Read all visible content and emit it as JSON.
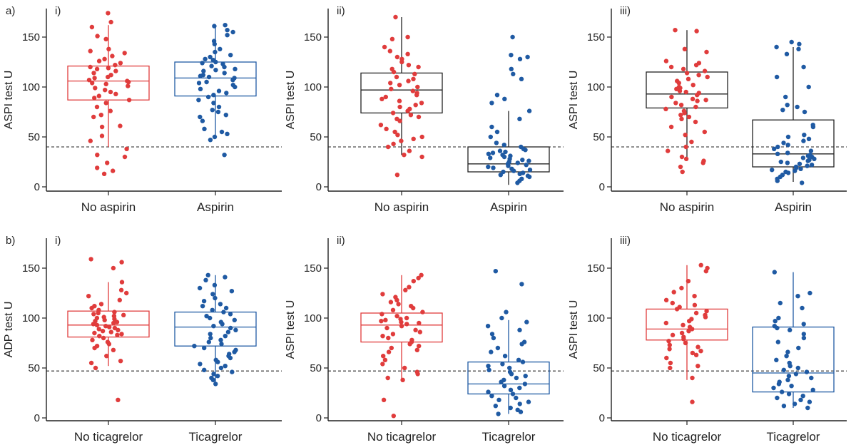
{
  "figure": {
    "row_labels": [
      "a)",
      "b)"
    ],
    "colors": {
      "red": "#e03c3c",
      "blue": "#1f5aa3",
      "black": "#222222"
    }
  },
  "chart_data": [
    {
      "type": "box-strip",
      "row": "a",
      "panel_label": "i)",
      "ylabel": "ASPI test U",
      "ylim": [
        0,
        175
      ],
      "yticks": [
        0,
        50,
        100,
        150
      ],
      "threshold": 40,
      "box_color": "red-blue",
      "groups": [
        {
          "name": "No aspirin",
          "color": "red",
          "box": {
            "whisker_low": 40,
            "q1": 87,
            "median": 106,
            "q3": 121,
            "whisker_high": 162
          },
          "points": [
            174,
            165,
            160,
            151,
            148,
            138,
            136,
            134,
            131,
            128,
            126,
            124,
            122,
            120,
            119,
            118,
            116,
            114,
            112,
            110,
            109,
            107,
            106,
            105,
            104,
            103,
            101,
            99,
            97,
            95,
            93,
            91,
            89,
            87,
            84,
            80,
            76,
            72,
            70,
            61,
            60,
            51,
            46,
            38,
            32,
            30,
            24,
            19,
            16,
            13
          ]
        },
        {
          "name": "Aspirin",
          "color": "blue",
          "box": {
            "whisker_low": 50,
            "q1": 91,
            "median": 109,
            "q3": 125,
            "whisker_high": 162
          },
          "points": [
            162,
            161,
            157,
            155,
            152,
            146,
            143,
            138,
            135,
            132,
            130,
            128,
            127,
            125,
            124,
            123,
            121,
            120,
            118,
            117,
            116,
            114,
            112,
            111,
            110,
            109,
            107,
            105,
            104,
            102,
            100,
            98,
            96,
            94,
            92,
            90,
            87,
            84,
            80,
            77,
            75,
            72,
            70,
            66,
            58,
            55,
            53,
            50,
            47,
            32
          ]
        }
      ]
    },
    {
      "type": "box-strip",
      "row": "a",
      "panel_label": "ii)",
      "ylabel": "ASPI test U",
      "ylim": [
        0,
        175
      ],
      "yticks": [
        0,
        50,
        100,
        150
      ],
      "threshold": 40,
      "box_color": "black",
      "groups": [
        {
          "name": "No aspirin",
          "color": "red",
          "box": {
            "whisker_low": 32,
            "q1": 74,
            "median": 97,
            "q3": 114,
            "whisker_high": 170
          },
          "points": [
            170,
            150,
            148,
            140,
            136,
            133,
            130,
            128,
            125,
            122,
            120,
            118,
            115,
            113,
            110,
            108,
            106,
            104,
            102,
            100,
            98,
            96,
            94,
            92,
            90,
            88,
            86,
            84,
            82,
            80,
            78,
            76,
            74,
            72,
            70,
            68,
            66,
            62,
            58,
            55,
            52,
            50,
            48,
            46,
            43,
            40,
            36,
            32,
            30,
            12
          ]
        },
        {
          "name": "Aspirin",
          "color": "blue",
          "box": {
            "whisker_low": 2,
            "q1": 15,
            "median": 23,
            "q3": 40,
            "whisker_high": 76
          },
          "points": [
            150,
            132,
            130,
            128,
            118,
            113,
            108,
            92,
            88,
            84,
            76,
            68,
            60,
            55,
            50,
            44,
            42,
            40,
            38,
            37,
            36,
            35,
            34,
            33,
            32,
            31,
            30,
            29,
            28,
            27,
            26,
            25,
            24,
            23,
            22,
            21,
            20,
            19,
            18,
            17,
            16,
            15,
            14,
            13,
            12,
            11,
            10,
            8,
            6,
            4
          ]
        }
      ]
    },
    {
      "type": "box-strip",
      "row": "a",
      "panel_label": "iii)",
      "ylabel": "ASPI test U",
      "ylim": [
        0,
        175
      ],
      "yticks": [
        0,
        50,
        100,
        150
      ],
      "threshold": 40,
      "box_color": "black",
      "groups": [
        {
          "name": "No aspirin",
          "color": "red",
          "box": {
            "whisker_low": 30,
            "q1": 79,
            "median": 93,
            "q3": 115,
            "whisker_high": 157
          },
          "points": [
            157,
            156,
            138,
            135,
            126,
            124,
            122,
            120,
            118,
            116,
            114,
            112,
            110,
            108,
            106,
            104,
            102,
            100,
            99,
            98,
            96,
            95,
            94,
            92,
            90,
            88,
            87,
            86,
            84,
            82,
            80,
            78,
            76,
            74,
            72,
            70,
            68,
            65,
            60,
            55,
            52,
            45,
            40,
            36,
            30,
            28,
            26,
            24,
            20,
            15
          ]
        },
        {
          "name": "Aspirin",
          "color": "blue",
          "box": {
            "whisker_low": 5,
            "q1": 20,
            "median": 33,
            "q3": 67,
            "whisker_high": 140
          },
          "points": [
            145,
            143,
            140,
            138,
            133,
            120,
            110,
            100,
            90,
            82,
            80,
            77,
            75,
            62,
            60,
            52,
            50,
            48,
            46,
            44,
            42,
            40,
            38,
            36,
            34,
            33,
            32,
            31,
            30,
            29,
            28,
            27,
            26,
            25,
            24,
            23,
            22,
            21,
            20,
            19,
            18,
            17,
            16,
            15,
            14,
            12,
            10,
            8,
            6,
            4
          ]
        }
      ]
    },
    {
      "type": "box-strip",
      "row": "b",
      "panel_label": "i)",
      "ylabel": "ADP test U",
      "ylim": [
        0,
        175
      ],
      "yticks": [
        0,
        50,
        100,
        150
      ],
      "threshold": 47,
      "box_color": "red-blue",
      "groups": [
        {
          "name": "No ticagrelor",
          "color": "red",
          "box": {
            "whisker_low": 52,
            "q1": 81,
            "median": 93,
            "q3": 107,
            "whisker_high": 136
          },
          "points": [
            159,
            156,
            150,
            136,
            128,
            125,
            122,
            118,
            114,
            112,
            110,
            108,
            106,
            105,
            104,
            103,
            102,
            101,
            100,
            99,
            98,
            97,
            96,
            95,
            94,
            93,
            92,
            91,
            90,
            89,
            88,
            87,
            86,
            85,
            84,
            83,
            82,
            80,
            78,
            76,
            74,
            72,
            70,
            68,
            62,
            57,
            55,
            50,
            18
          ]
        },
        {
          "name": "Ticagrelor",
          "color": "blue",
          "box": {
            "whisker_low": 36,
            "q1": 72,
            "median": 91,
            "q3": 106,
            "whisker_high": 143
          },
          "points": [
            143,
            141,
            138,
            133,
            130,
            127,
            124,
            120,
            117,
            114,
            112,
            110,
            108,
            106,
            104,
            102,
            100,
            98,
            96,
            94,
            92,
            90,
            88,
            86,
            84,
            82,
            80,
            78,
            76,
            74,
            72,
            70,
            68,
            66,
            64,
            62,
            60,
            58,
            56,
            54,
            52,
            50,
            48,
            46,
            44,
            42,
            40,
            38,
            34
          ]
        }
      ]
    },
    {
      "type": "box-strip",
      "row": "b",
      "panel_label": "ii)",
      "ylabel": "ASPI test U",
      "ylim": [
        0,
        175
      ],
      "yticks": [
        0,
        50,
        100,
        150
      ],
      "threshold": 47,
      "box_color": "red-blue",
      "groups": [
        {
          "name": "No ticagrelor",
          "color": "red",
          "box": {
            "whisker_low": 38,
            "q1": 76,
            "median": 93,
            "q3": 105,
            "whisker_high": 143
          },
          "points": [
            143,
            140,
            137,
            131,
            128,
            124,
            121,
            118,
            116,
            114,
            112,
            110,
            108,
            106,
            104,
            102,
            100,
            99,
            98,
            97,
            96,
            95,
            94,
            92,
            90,
            88,
            86,
            84,
            82,
            80,
            78,
            76,
            74,
            72,
            70,
            68,
            66,
            62,
            58,
            54,
            50,
            46,
            44,
            40,
            38,
            18,
            2
          ]
        },
        {
          "name": "Ticagrelor",
          "color": "blue",
          "box": {
            "whisker_low": 4,
            "q1": 24,
            "median": 34,
            "q3": 56,
            "whisker_high": 98
          },
          "points": [
            147,
            134,
            106,
            100,
            96,
            92,
            88,
            84,
            80,
            76,
            74,
            70,
            66,
            62,
            58,
            56,
            54,
            52,
            50,
            48,
            46,
            44,
            42,
            40,
            38,
            36,
            34,
            32,
            30,
            28,
            26,
            24,
            22,
            20,
            18,
            16,
            14,
            12,
            10,
            8,
            6,
            4
          ]
        }
      ]
    },
    {
      "type": "box-strip",
      "row": "b",
      "panel_label": "iii)",
      "ylabel": "ASPI test U",
      "ylim": [
        0,
        175
      ],
      "yticks": [
        0,
        50,
        100,
        150
      ],
      "threshold": 47,
      "box_color": "red-blue",
      "groups": [
        {
          "name": "No ticagrelor",
          "color": "red",
          "box": {
            "whisker_low": 38,
            "q1": 78,
            "median": 89,
            "q3": 109,
            "whisker_high": 153
          },
          "points": [
            153,
            150,
            147,
            137,
            130,
            126,
            122,
            118,
            115,
            113,
            111,
            109,
            107,
            105,
            103,
            101,
            99,
            97,
            95,
            93,
            91,
            89,
            87,
            85,
            83,
            81,
            79,
            77,
            75,
            73,
            71,
            69,
            67,
            65,
            63,
            60,
            55,
            52,
            50,
            40,
            16
          ]
        },
        {
          "name": "Ticagrelor",
          "color": "blue",
          "box": {
            "whisker_low": 10,
            "q1": 26,
            "median": 45,
            "q3": 91,
            "whisker_high": 146
          },
          "points": [
            146,
            125,
            122,
            115,
            110,
            100,
            97,
            94,
            92,
            90,
            88,
            84,
            80,
            76,
            70,
            66,
            62,
            58,
            55,
            52,
            50,
            48,
            46,
            44,
            42,
            40,
            38,
            36,
            34,
            32,
            30,
            28,
            26,
            24,
            22,
            20,
            18,
            16,
            14,
            12,
            10
          ]
        }
      ]
    }
  ]
}
